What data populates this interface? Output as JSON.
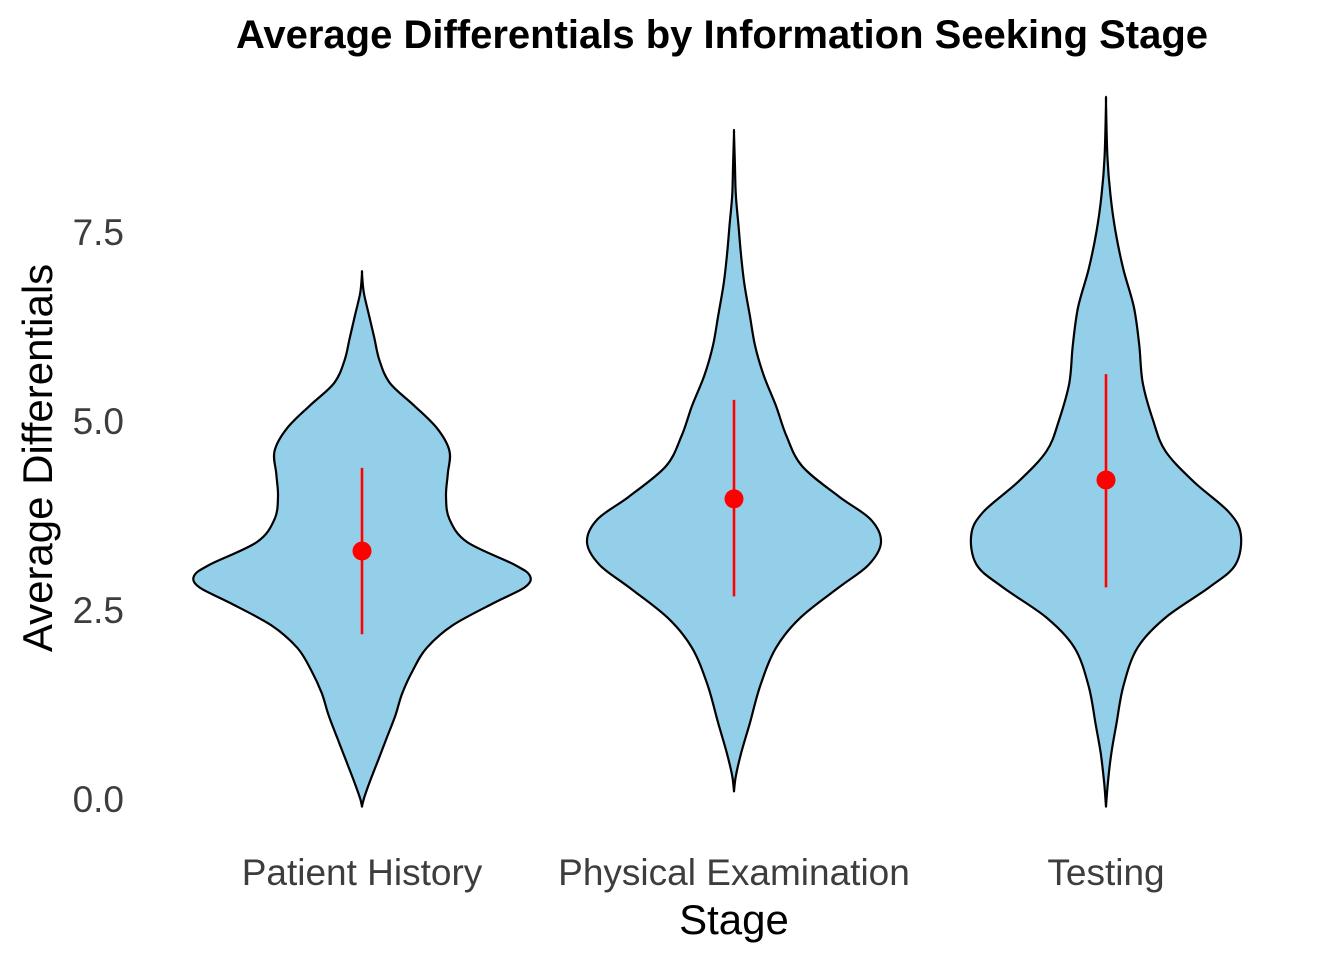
{
  "chart_data": {
    "type": "violin",
    "title": "Average Differentials by Information Seeking Stage",
    "xlabel": "Stage",
    "ylabel": "Average Differentials",
    "ylim": [
      -0.1,
      9.2
    ],
    "yticks": [
      0.0,
      2.5,
      5.0,
      7.5
    ],
    "ytick_labels": [
      "0.0",
      "2.5",
      "5.0",
      "7.5"
    ],
    "grid": false,
    "legend": "none",
    "colors": {
      "fill": "#94CFEA",
      "outline": "#000000",
      "summary": "#FF0000"
    },
    "categories": [
      "Patient History",
      "Physical Examination",
      "Testing"
    ],
    "violins": [
      {
        "category": "Patient History",
        "min": -0.1,
        "max": 6.95,
        "mean": 3.28,
        "lower": 2.18,
        "upper": 4.38,
        "density": [
          [
            -0.1,
            0.0
          ],
          [
            0.0,
            0.01
          ],
          [
            0.2,
            0.04
          ],
          [
            0.5,
            0.09
          ],
          [
            0.8,
            0.14
          ],
          [
            1.1,
            0.19
          ],
          [
            1.4,
            0.23
          ],
          [
            1.7,
            0.29
          ],
          [
            2.0,
            0.37
          ],
          [
            2.3,
            0.52
          ],
          [
            2.6,
            0.76
          ],
          [
            2.8,
            0.93
          ],
          [
            2.95,
            0.96
          ],
          [
            3.1,
            0.87
          ],
          [
            3.4,
            0.6
          ],
          [
            3.7,
            0.5
          ],
          [
            4.0,
            0.48
          ],
          [
            4.3,
            0.49
          ],
          [
            4.6,
            0.5
          ],
          [
            4.9,
            0.43
          ],
          [
            5.2,
            0.3
          ],
          [
            5.5,
            0.16
          ],
          [
            5.8,
            0.1
          ],
          [
            6.1,
            0.07
          ],
          [
            6.4,
            0.04
          ],
          [
            6.7,
            0.01
          ],
          [
            6.95,
            0.0
          ]
        ]
      },
      {
        "category": "Physical Examination",
        "min": 0.1,
        "max": 8.8,
        "mean": 3.97,
        "lower": 2.68,
        "upper": 5.28,
        "density": [
          [
            0.1,
            0.0
          ],
          [
            0.3,
            0.01
          ],
          [
            0.6,
            0.04
          ],
          [
            1.0,
            0.09
          ],
          [
            1.5,
            0.15
          ],
          [
            2.0,
            0.24
          ],
          [
            2.4,
            0.38
          ],
          [
            2.8,
            0.6
          ],
          [
            3.1,
            0.77
          ],
          [
            3.4,
            0.84
          ],
          [
            3.7,
            0.78
          ],
          [
            4.0,
            0.6
          ],
          [
            4.4,
            0.39
          ],
          [
            4.8,
            0.3
          ],
          [
            5.2,
            0.24
          ],
          [
            5.6,
            0.17
          ],
          [
            6.0,
            0.12
          ],
          [
            6.4,
            0.09
          ],
          [
            6.8,
            0.06
          ],
          [
            7.2,
            0.04
          ],
          [
            7.6,
            0.025
          ],
          [
            8.0,
            0.01
          ],
          [
            8.4,
            0.005
          ],
          [
            8.8,
            0.0
          ]
        ]
      },
      {
        "category": "Testing",
        "min": -0.1,
        "max": 9.2,
        "mean": 4.22,
        "lower": 2.8,
        "upper": 5.62,
        "density": [
          [
            -0.1,
            0.0
          ],
          [
            0.2,
            0.01
          ],
          [
            0.6,
            0.03
          ],
          [
            1.0,
            0.06
          ],
          [
            1.5,
            0.1
          ],
          [
            2.0,
            0.18
          ],
          [
            2.4,
            0.34
          ],
          [
            2.8,
            0.59
          ],
          [
            3.1,
            0.74
          ],
          [
            3.5,
            0.77
          ],
          [
            3.8,
            0.7
          ],
          [
            4.2,
            0.5
          ],
          [
            4.6,
            0.34
          ],
          [
            5.0,
            0.27
          ],
          [
            5.5,
            0.21
          ],
          [
            6.0,
            0.19
          ],
          [
            6.5,
            0.16
          ],
          [
            7.0,
            0.1
          ],
          [
            7.5,
            0.055
          ],
          [
            8.0,
            0.025
          ],
          [
            8.5,
            0.008
          ],
          [
            9.2,
            0.0
          ]
        ]
      }
    ]
  }
}
